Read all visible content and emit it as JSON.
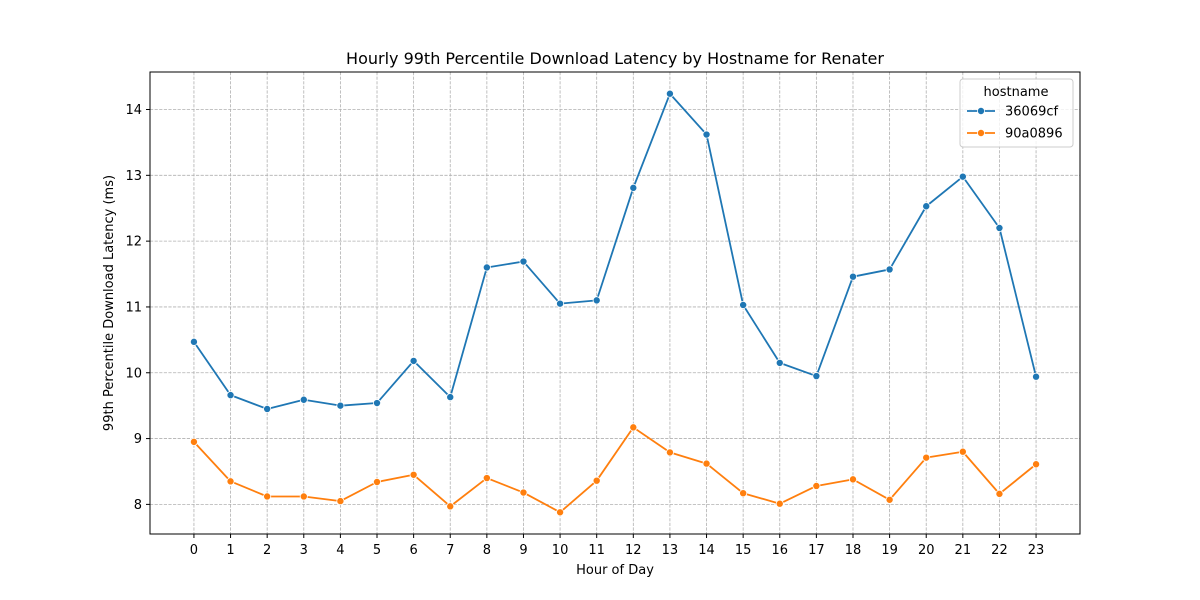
{
  "chart_data": {
    "type": "line",
    "title": "Hourly 99th Percentile Download Latency by Hostname for Renater",
    "xlabel": "Hour of Day",
    "ylabel": "99th Percentile Download Latency (ms)",
    "x": [
      0,
      1,
      2,
      3,
      4,
      5,
      6,
      7,
      8,
      9,
      10,
      11,
      12,
      13,
      14,
      15,
      16,
      17,
      18,
      19,
      20,
      21,
      22,
      23
    ],
    "x_tick_labels": [
      "0",
      "1",
      "2",
      "3",
      "4",
      "5",
      "6",
      "7",
      "8",
      "9",
      "10",
      "11",
      "12",
      "13",
      "14",
      "15",
      "16",
      "17",
      "18",
      "19",
      "20",
      "21",
      "22",
      "23"
    ],
    "y_ticks": [
      8,
      9,
      10,
      11,
      12,
      13,
      14
    ],
    "y_tick_labels": [
      "8",
      "9",
      "10",
      "11",
      "12",
      "13",
      "14"
    ],
    "xlim": [
      -1.2,
      24.2
    ],
    "ylim": [
      7.55,
      14.57
    ],
    "grid": true,
    "legend": {
      "title": "hostname",
      "placement": "top-right"
    },
    "series": [
      {
        "name": "36069cf",
        "color": "#1f77b4",
        "marker": "circle",
        "values": [
          10.47,
          9.66,
          9.45,
          9.59,
          9.5,
          9.54,
          10.18,
          9.63,
          11.6,
          11.69,
          11.05,
          11.1,
          12.81,
          14.24,
          13.62,
          11.03,
          10.15,
          9.95,
          11.46,
          11.57,
          12.53,
          12.98,
          12.2,
          9.94
        ]
      },
      {
        "name": "90a0896",
        "color": "#ff7f0e",
        "marker": "circle",
        "values": [
          8.95,
          8.35,
          8.12,
          8.12,
          8.05,
          8.34,
          8.45,
          7.97,
          8.4,
          8.18,
          7.88,
          8.36,
          9.17,
          8.79,
          8.62,
          8.17,
          8.01,
          8.28,
          8.38,
          8.07,
          8.71,
          8.8,
          8.16,
          8.61
        ]
      }
    ]
  }
}
